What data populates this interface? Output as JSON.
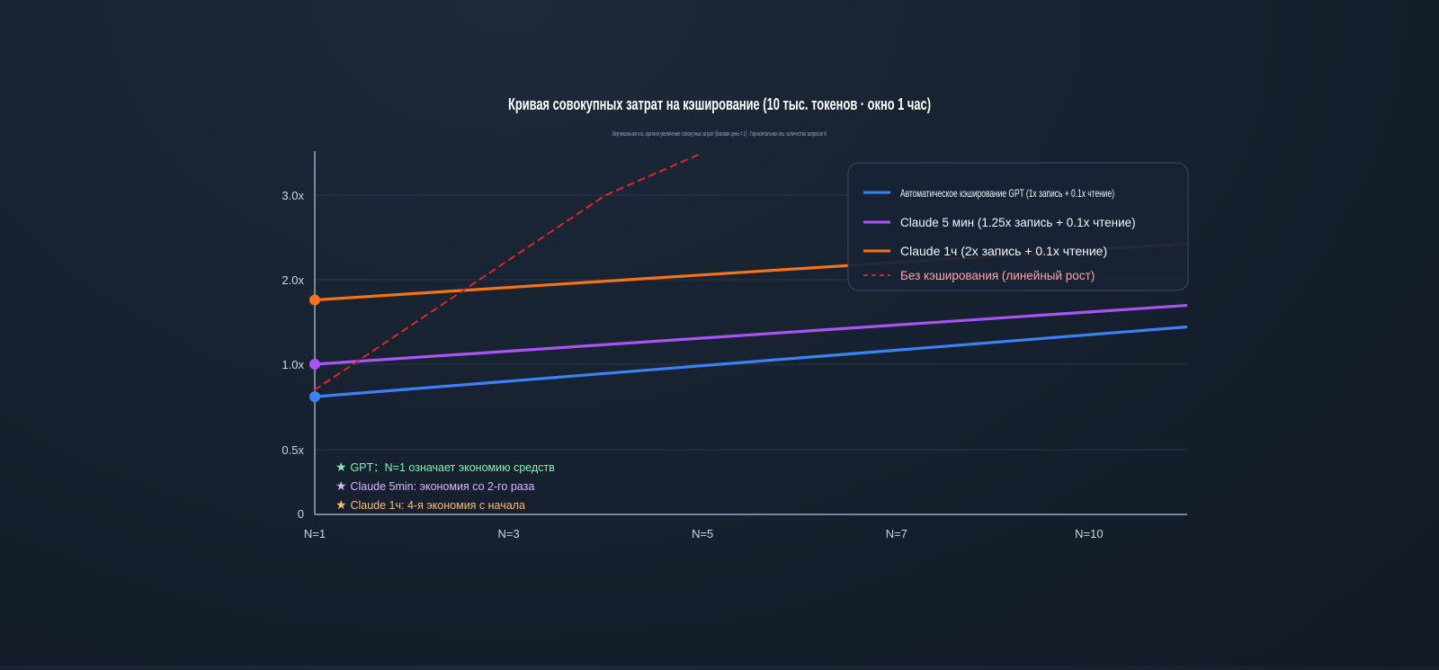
{
  "chart_data": {
    "type": "line",
    "title": "Кривая совокупных затрат на кэширование (10 тыс. токенов · окно 1 час)",
    "subtitle": "Вертикальная ось: кратное увеличение совокупных затрат (базовая цена = 1) · Горизонтальная ось: количество запросов N",
    "categories": [
      "N=1",
      "N=3",
      "N=5",
      "N=7",
      "N=10"
    ],
    "y_ticks": [
      {
        "value": 0,
        "label": "0"
      },
      {
        "value": 0.5,
        "label": "0.5x"
      },
      {
        "value": 1.0,
        "label": "1.0x"
      },
      {
        "value": 2.0,
        "label": "2.0x"
      },
      {
        "value": 3.0,
        "label": "3.0x"
      }
    ],
    "grid": true,
    "legend_position": "top-right",
    "series": [
      {
        "name": "Автоматическое кэширование GPT (1x запись + 0.1x чтение)",
        "color": "#3b82f6",
        "x": [
          1,
          12
        ],
        "y": [
          0.81,
          1.47
        ],
        "start_marker": true
      },
      {
        "name": "Claude 5 мин (1.25x запись + 0.1x чтение)",
        "color": "#a855f7",
        "x": [
          1,
          12
        ],
        "y": [
          1.0,
          1.72
        ],
        "start_marker": true
      },
      {
        "name": "Claude 1ч (2x запись + 0.1x чтение)",
        "color": "#f97316",
        "x": [
          1,
          12
        ],
        "y": [
          1.76,
          2.45
        ],
        "start_marker": true
      },
      {
        "name": "Без кэширования (линейный рост)",
        "color": "#dc2626",
        "dashed": true,
        "x": [
          1,
          4,
          5
        ],
        "y": [
          0.85,
          3.0,
          3.5
        ],
        "start_marker": false
      }
    ],
    "annotations": [
      {
        "star": "★",
        "text": "GPT：N=1 означает экономию средств",
        "color": "#86efac"
      },
      {
        "star": "★",
        "text": "Claude 5min: экономия со 2-го раза",
        "color": "#d8b4fe"
      },
      {
        "star": "★",
        "text": "Claude 1ч: 4-я экономия с начала",
        "color": "#fdba74"
      }
    ]
  }
}
